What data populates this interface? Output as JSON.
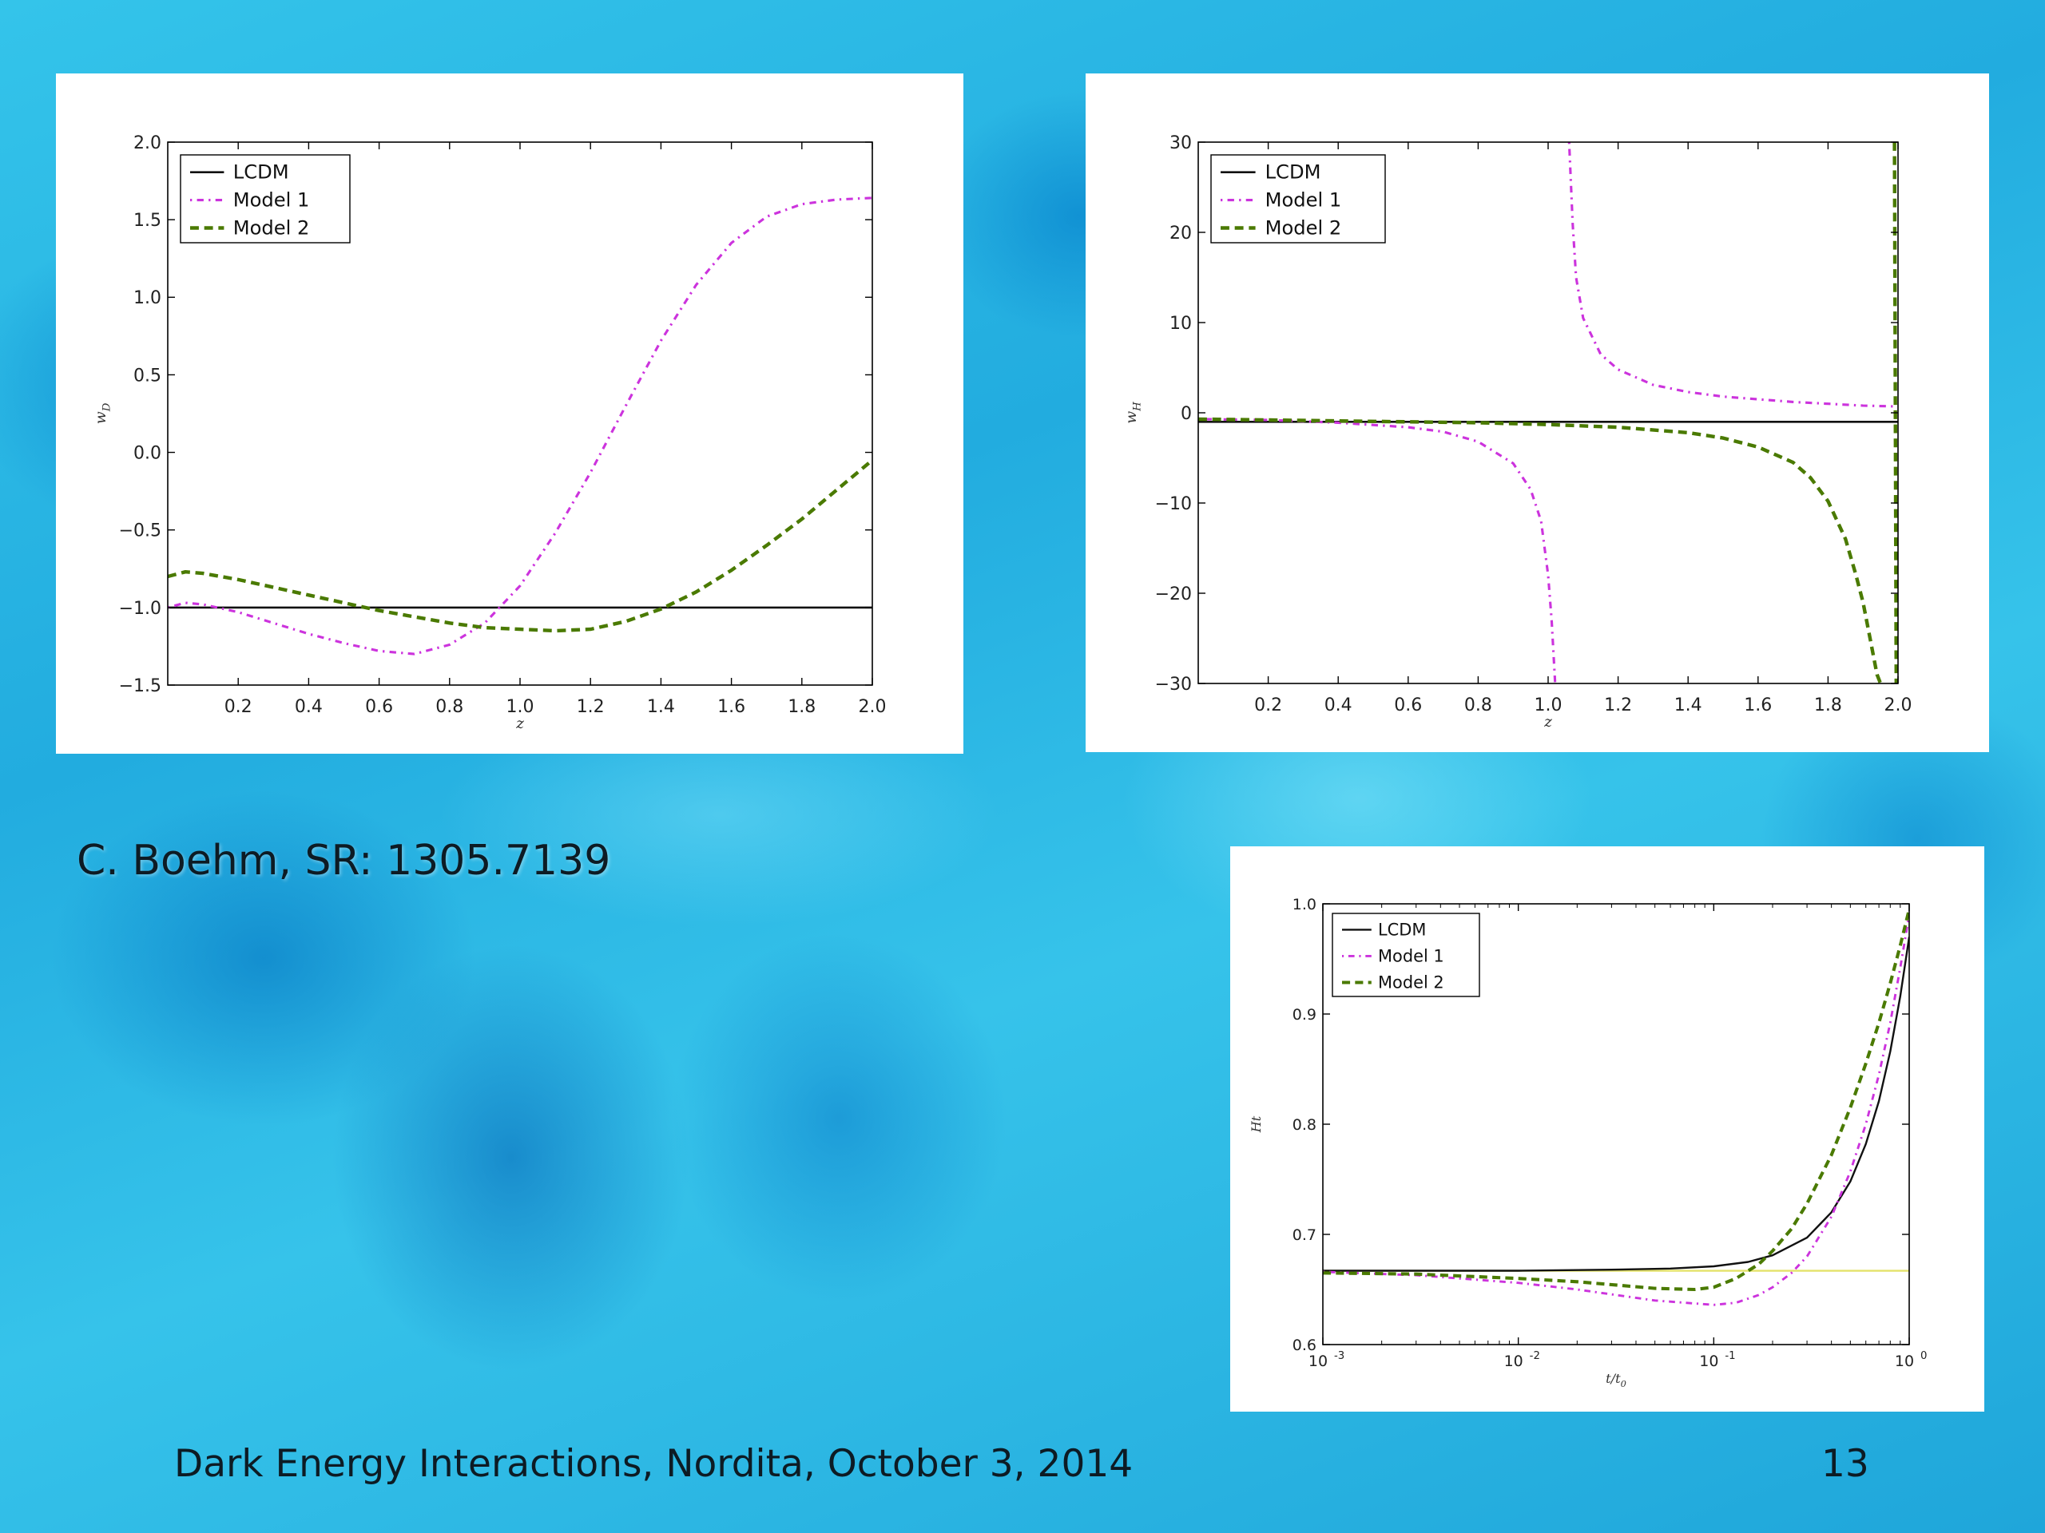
{
  "slide": {
    "citation": "C. Boehm, SR: 1305.7139",
    "footer": "Dark Energy Interactions, Nordita, October 3, 2014",
    "slide_number": "13"
  },
  "style": {
    "colors": {
      "lcdm": "#111111",
      "model1": "#cc33dd",
      "model2": "#4a7a00",
      "reference": "#e4e26a"
    }
  },
  "chart_data": [
    {
      "type": "line",
      "xlabel": "z",
      "ylabel": "w_D",
      "xlim": [
        0,
        2.0
      ],
      "ylim": [
        -1.5,
        2.0
      ],
      "xticks": [
        "0.2",
        "0.4",
        "0.6",
        "0.8",
        "1.0",
        "1.2",
        "1.4",
        "1.6",
        "1.8",
        "2.0"
      ],
      "yticks": [
        "2.0",
        "1.5",
        "1.0",
        "0.5",
        "0.0",
        "−0.5",
        "−1.0",
        "−1.5"
      ],
      "legend_position": "top-left",
      "series": [
        {
          "name": "LCDM",
          "style": "solid",
          "x": [
            0,
            2.0
          ],
          "y": [
            -1.0,
            -1.0
          ]
        },
        {
          "name": "Model 1",
          "style": "dotted",
          "x": [
            0,
            0.05,
            0.1,
            0.2,
            0.3,
            0.4,
            0.5,
            0.6,
            0.7,
            0.8,
            0.9,
            1.0,
            1.1,
            1.2,
            1.3,
            1.4,
            1.5,
            1.6,
            1.7,
            1.8,
            1.9,
            2.0
          ],
          "y": [
            -1.0,
            -0.97,
            -0.98,
            -1.03,
            -1.1,
            -1.17,
            -1.23,
            -1.28,
            -1.3,
            -1.24,
            -1.1,
            -0.86,
            -0.52,
            -0.13,
            0.3,
            0.72,
            1.08,
            1.35,
            1.52,
            1.6,
            1.63,
            1.64
          ]
        },
        {
          "name": "Model 2",
          "style": "dashed",
          "x": [
            0,
            0.05,
            0.1,
            0.2,
            0.3,
            0.4,
            0.5,
            0.6,
            0.7,
            0.8,
            0.9,
            1.0,
            1.1,
            1.2,
            1.3,
            1.4,
            1.5,
            1.6,
            1.7,
            1.8,
            1.9,
            2.0
          ],
          "y": [
            -0.8,
            -0.77,
            -0.78,
            -0.82,
            -0.87,
            -0.92,
            -0.97,
            -1.02,
            -1.06,
            -1.1,
            -1.13,
            -1.14,
            -1.15,
            -1.14,
            -1.09,
            -1.01,
            -0.9,
            -0.76,
            -0.6,
            -0.43,
            -0.24,
            -0.05
          ]
        }
      ]
    },
    {
      "type": "line",
      "xlabel": "z",
      "ylabel": "w_H",
      "xlim": [
        0,
        2.0
      ],
      "ylim": [
        -30,
        30
      ],
      "xticks": [
        "0.2",
        "0.4",
        "0.6",
        "0.8",
        "1.0",
        "1.2",
        "1.4",
        "1.6",
        "1.8",
        "2.0"
      ],
      "yticks": [
        "30",
        "20",
        "10",
        "0",
        "−10",
        "−20",
        "−30"
      ],
      "legend_position": "top-left",
      "series": [
        {
          "name": "LCDM",
          "style": "solid",
          "x": [
            0,
            2.0
          ],
          "y": [
            -1.0,
            -1.0
          ]
        },
        {
          "name": "Model 1",
          "style": "dotted",
          "segments": [
            {
              "x": [
                0,
                0.2,
                0.4,
                0.6,
                0.7,
                0.8,
                0.9,
                0.95,
                0.98,
                1.0,
                1.01,
                1.02
              ],
              "y": [
                -0.7,
                -0.8,
                -1.1,
                -1.6,
                -2.1,
                -3.2,
                -5.6,
                -8.5,
                -12,
                -18,
                -23,
                -30
              ]
            },
            {
              "x": [
                1.06,
                1.07,
                1.08,
                1.1,
                1.15,
                1.2,
                1.3,
                1.4,
                1.5,
                1.6,
                1.7,
                1.8,
                1.9,
                2.0
              ],
              "y": [
                30,
                21,
                15,
                10.5,
                6.5,
                4.8,
                3.1,
                2.3,
                1.8,
                1.5,
                1.2,
                1.0,
                0.8,
                0.7
              ]
            }
          ]
        },
        {
          "name": "Model 2",
          "style": "dashed",
          "segments": [
            {
              "x": [
                0,
                0.2,
                0.4,
                0.6,
                0.8,
                1.0,
                1.2,
                1.4,
                1.5,
                1.6,
                1.7,
                1.75,
                1.8,
                1.85,
                1.88,
                1.9,
                1.92,
                1.94,
                1.95
              ],
              "y": [
                -0.7,
                -0.8,
                -0.9,
                -1.0,
                -1.1,
                -1.3,
                -1.6,
                -2.2,
                -2.8,
                -3.8,
                -5.5,
                -7.2,
                -9.8,
                -14,
                -18,
                -21,
                -25,
                -29,
                -30
              ]
            },
            {
              "x": [
                1.99,
                1.995
              ],
              "y": [
                30,
                -30
              ]
            }
          ]
        }
      ]
    },
    {
      "type": "line",
      "xlabel": "t/t_0",
      "ylabel": "Ht",
      "xscale": "log",
      "xlim": [
        0.001,
        1.0
      ],
      "ylim": [
        0.6,
        1.0
      ],
      "xticks": [
        {
          "base": "10",
          "exp": "-3"
        },
        {
          "base": "10",
          "exp": "-2"
        },
        {
          "base": "10",
          "exp": "-1"
        },
        {
          "base": "10",
          "exp": "0"
        }
      ],
      "yticks": [
        "1.0",
        "0.9",
        "0.8",
        "0.7",
        "0.6"
      ],
      "legend_position": "top-left",
      "reference_line": {
        "y": 0.667
      },
      "series": [
        {
          "name": "LCDM",
          "style": "solid",
          "x": [
            0.001,
            0.003,
            0.01,
            0.03,
            0.06,
            0.1,
            0.15,
            0.2,
            0.3,
            0.4,
            0.5,
            0.6,
            0.7,
            0.8,
            0.9,
            1.0
          ],
          "y": [
            0.667,
            0.667,
            0.667,
            0.668,
            0.669,
            0.671,
            0.675,
            0.681,
            0.697,
            0.72,
            0.748,
            0.782,
            0.821,
            0.866,
            0.916,
            0.97
          ]
        },
        {
          "name": "Model 1",
          "style": "dotted",
          "x": [
            0.001,
            0.003,
            0.01,
            0.02,
            0.05,
            0.1,
            0.13,
            0.17,
            0.2,
            0.25,
            0.3,
            0.4,
            0.5,
            0.6,
            0.7,
            0.8,
            0.9,
            1.0
          ],
          "y": [
            0.666,
            0.663,
            0.656,
            0.65,
            0.64,
            0.636,
            0.638,
            0.645,
            0.652,
            0.665,
            0.68,
            0.716,
            0.757,
            0.8,
            0.845,
            0.892,
            0.942,
            0.99
          ]
        },
        {
          "name": "Model 2",
          "style": "dashed",
          "x": [
            0.001,
            0.003,
            0.01,
            0.02,
            0.05,
            0.08,
            0.1,
            0.13,
            0.17,
            0.2,
            0.25,
            0.3,
            0.4,
            0.5,
            0.6,
            0.7,
            0.8,
            0.9,
            1.0
          ],
          "y": [
            0.665,
            0.664,
            0.66,
            0.657,
            0.651,
            0.65,
            0.652,
            0.66,
            0.673,
            0.685,
            0.705,
            0.728,
            0.772,
            0.815,
            0.855,
            0.892,
            0.928,
            0.962,
            0.995
          ]
        }
      ]
    }
  ]
}
